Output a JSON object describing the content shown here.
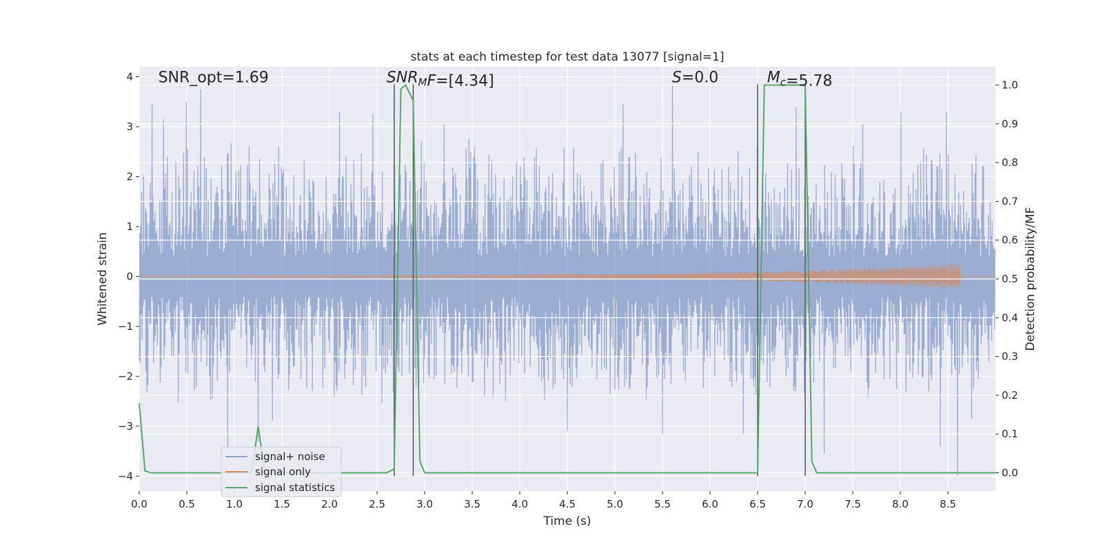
{
  "chart_data": {
    "type": "line",
    "title": "stats at each timestep for test data 13077 [signal=1]",
    "xlabel": "Time (s)",
    "ylabel": "Whitened strain",
    "y2label": "Detection probability/MF",
    "xlim": [
      0,
      9
    ],
    "ylim": [
      -4.3,
      4.2
    ],
    "y2lim": [
      -0.047,
      1.047
    ],
    "xticks": [
      0.0,
      0.5,
      1.0,
      1.5,
      2.0,
      2.5,
      3.0,
      3.5,
      4.0,
      4.5,
      5.0,
      5.5,
      6.0,
      6.5,
      7.0,
      7.5,
      8.0,
      8.5
    ],
    "xtick_labels": [
      "0.0",
      "0.5",
      "1.0",
      "1.5",
      "2.0",
      "2.5",
      "3.0",
      "3.5",
      "4.0",
      "4.5",
      "5.0",
      "5.5",
      "6.0",
      "6.5",
      "7.0",
      "7.5",
      "8.0",
      "8.5"
    ],
    "yticks": [
      4,
      3,
      2,
      1,
      0,
      -1,
      -2,
      -3,
      -4
    ],
    "ytick_labels": [
      "4",
      "3",
      "2",
      "1",
      "0",
      "−1",
      "−2",
      "−3",
      "−4"
    ],
    "y2ticks": [
      1.0,
      0.9,
      0.8,
      0.7,
      0.6,
      0.5,
      0.4,
      0.3,
      0.2,
      0.1,
      0.0
    ],
    "y2tick_labels": [
      "1.0",
      "0.9",
      "0.8",
      "0.7",
      "0.6",
      "0.5",
      "0.4",
      "0.3",
      "0.2",
      "0.1",
      "0.0"
    ],
    "grid": true,
    "legend_position": "lower-left",
    "annotations": [
      {
        "parts": [
          {
            "text": "SNR_opt=1.69",
            "italic": false
          }
        ],
        "x": 0.2,
        "y": 4.0
      },
      {
        "parts": [
          {
            "text": "SNR",
            "italic": true
          },
          {
            "text": "M",
            "italic": true,
            "sub": true
          },
          {
            "text": "F",
            "italic": true
          },
          {
            "text": "=[4.34]",
            "italic": false
          }
        ],
        "x": 2.6,
        "y": 4.0
      },
      {
        "parts": [
          {
            "text": "S",
            "italic": true
          },
          {
            "text": "=0.0",
            "italic": false
          }
        ],
        "x": 5.6,
        "y": 4.0
      },
      {
        "parts": [
          {
            "text": "M",
            "italic": true
          },
          {
            "text": "c",
            "italic": true,
            "sub": true
          },
          {
            "text": "=5.78",
            "italic": false
          }
        ],
        "x": 6.6,
        "y": 4.0
      }
    ],
    "vlines": [
      {
        "x": 2.68,
        "y0": -4.0,
        "y1": 3.85
      },
      {
        "x": 2.88,
        "y0": -4.0,
        "y1": 3.85
      },
      {
        "x": 6.5,
        "y0": -4.0,
        "y1": 3.85
      },
      {
        "x": 7.0,
        "y0": -4.0,
        "y1": 3.85
      }
    ],
    "series": [
      {
        "name": "signal+ noise",
        "color": "#4c72b0",
        "alpha": 0.5,
        "axis": "left",
        "kind": "noise",
        "sample_interval": 0.005,
        "typical_upper": 2.2,
        "typical_lower": -2.0,
        "peaks": [
          {
            "x": 0.14,
            "y": 3.45
          },
          {
            "x": 0.26,
            "y": 3.15
          },
          {
            "x": 0.5,
            "y": 3.5
          },
          {
            "x": 0.65,
            "y": 3.75
          },
          {
            "x": 0.93,
            "y": -3.45
          },
          {
            "x": 1.25,
            "y": -3.3
          },
          {
            "x": 1.4,
            "y": -2.9
          },
          {
            "x": 2.1,
            "y": 3.3
          },
          {
            "x": 2.45,
            "y": 3.25
          },
          {
            "x": 2.88,
            "y": -3.0
          },
          {
            "x": 5.08,
            "y": 3.45
          },
          {
            "x": 5.6,
            "y": 3.85
          },
          {
            "x": 5.5,
            "y": -3.15
          },
          {
            "x": 6.35,
            "y": -3.15
          },
          {
            "x": 6.9,
            "y": 3.4
          },
          {
            "x": 7.2,
            "y": -3.55
          },
          {
            "x": 8.0,
            "y": 3.3
          },
          {
            "x": 8.42,
            "y": -3.4
          },
          {
            "x": 8.48,
            "y": 3.3
          },
          {
            "x": 8.6,
            "y": -4.0
          },
          {
            "x": 8.75,
            "y": -2.85
          },
          {
            "x": 4.5,
            "y": -3.1
          },
          {
            "x": 3.2,
            "y": 3.05
          },
          {
            "x": 7.6,
            "y": 3.05
          }
        ]
      },
      {
        "name": "signal only",
        "color": "#dd8452",
        "alpha": 0.6,
        "axis": "left",
        "kind": "chirp",
        "chirp_end_x": 8.63,
        "amplitude_start": 0.02,
        "amplitude_end": 0.25
      },
      {
        "name": "signal statistics",
        "color": "#55a868",
        "axis": "right",
        "kind": "line",
        "x": [
          0.0,
          0.06,
          0.12,
          0.2,
          1.0,
          1.18,
          1.25,
          1.32,
          2.6,
          2.68,
          2.75,
          2.8,
          2.88,
          2.95,
          3.0,
          6.45,
          6.5,
          6.57,
          7.0,
          7.07,
          7.12,
          9.0
        ],
        "y": [
          0.18,
          0.005,
          0.0,
          0.0,
          0.0,
          0.0,
          0.12,
          0.0,
          0.0,
          0.01,
          0.99,
          1.0,
          0.96,
          0.03,
          0.0,
          0.0,
          0.0,
          1.0,
          1.0,
          0.03,
          0.0,
          0.0
        ]
      }
    ]
  }
}
